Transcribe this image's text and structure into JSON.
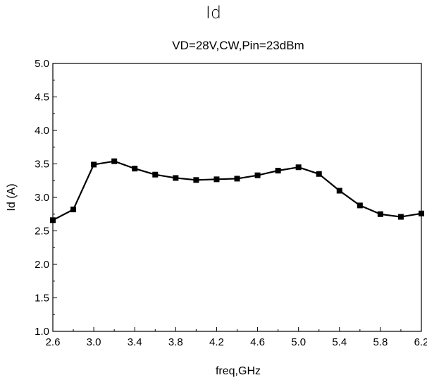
{
  "page_title": "Id",
  "chart_data": {
    "type": "line",
    "title": "VD=28V,CW,Pin=23dBm",
    "xlabel": "freq,GHz",
    "ylabel": "Id (A)",
    "xlim": [
      2.6,
      6.2
    ],
    "ylim": [
      1.0,
      5.0
    ],
    "x_ticks": [
      "2.6",
      "3.0",
      "3.4",
      "3.8",
      "4.2",
      "4.6",
      "5.0",
      "5.4",
      "5.8",
      "6.2"
    ],
    "y_ticks": [
      "1.0",
      "1.5",
      "2.0",
      "2.5",
      "3.0",
      "3.5",
      "4.0",
      "4.5",
      "5.0"
    ],
    "grid": false,
    "series": [
      {
        "marker": "square",
        "color": "#000000",
        "x": [
          2.6,
          2.8,
          3.0,
          3.2,
          3.4,
          3.6,
          3.8,
          4.0,
          4.2,
          4.4,
          4.6,
          4.8,
          5.0,
          5.2,
          5.4,
          5.6,
          5.8,
          6.0,
          6.2
        ],
        "y": [
          2.66,
          2.82,
          3.49,
          3.54,
          3.43,
          3.34,
          3.29,
          3.26,
          3.27,
          3.28,
          3.33,
          3.4,
          3.45,
          3.35,
          3.1,
          2.88,
          2.75,
          2.71,
          2.76
        ]
      }
    ]
  }
}
